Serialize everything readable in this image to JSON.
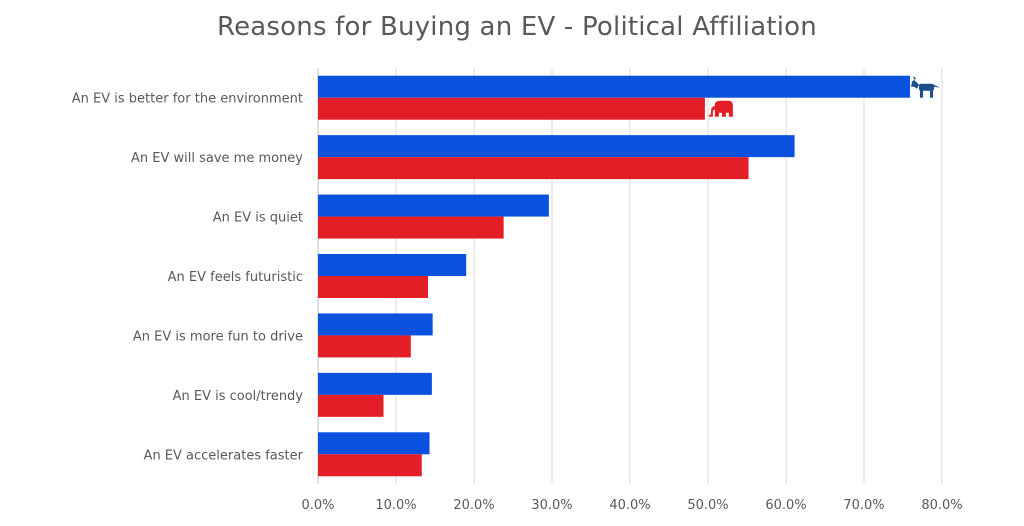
{
  "chart_data": {
    "type": "bar",
    "orientation": "horizontal",
    "title": "Reasons for Buying an EV - Political Affiliation",
    "xlabel": "",
    "ylabel": "",
    "categories": [
      "An EV is better for the environment",
      "An EV will save me money",
      "An EV is quiet",
      "An EV feels futuristic",
      "An EV is more fun to drive",
      "An EV is cool/trendy",
      "An EV accelerates faster"
    ],
    "series": [
      {
        "color": "#0a52de",
        "values": [
          75.9,
          61.1,
          29.6,
          19.0,
          14.7,
          14.6,
          14.3
        ],
        "marker_icon": "donkey-icon"
      },
      {
        "color": "#e41e26",
        "values": [
          49.6,
          55.2,
          23.8,
          14.1,
          11.9,
          8.4,
          13.3
        ],
        "marker_icon": "elephant-icon"
      }
    ],
    "xlim": [
      0,
      80
    ],
    "xticks": [
      "0.0%",
      "10.0%",
      "20.0%",
      "30.0%",
      "40.0%",
      "50.0%",
      "60.0%",
      "70.0%",
      "80.0%"
    ],
    "grid": true,
    "legend": "none"
  }
}
